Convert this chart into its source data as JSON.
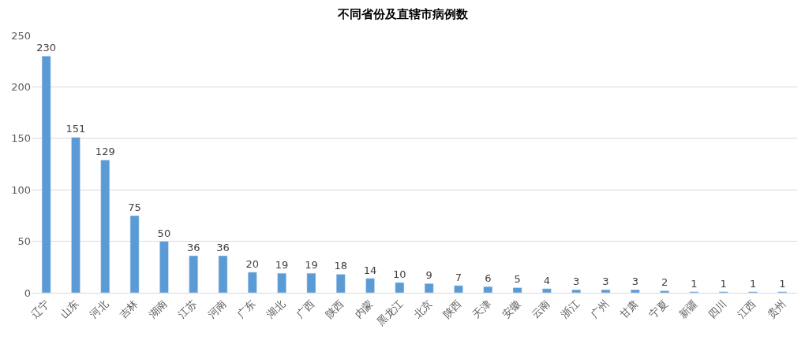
{
  "chart_data": {
    "type": "bar",
    "title": "不同省份及直辖市病例数",
    "categories": [
      "辽宁",
      "山东",
      "河北",
      "吉林",
      "湖南",
      "江苏",
      "河南",
      "广东",
      "湖北",
      "广西",
      "陕西",
      "内蒙",
      "黑龙江",
      "北京",
      "陕西",
      "天津",
      "安徽",
      "云南",
      "浙江",
      "广州",
      "甘肃",
      "宁夏",
      "新疆",
      "四川",
      "江西",
      "贵州"
    ],
    "values": [
      230,
      151,
      129,
      75,
      50,
      36,
      36,
      20,
      19,
      19,
      18,
      14,
      10,
      9,
      7,
      6,
      5,
      4,
      3,
      3,
      3,
      2,
      1,
      1,
      1,
      1
    ],
    "color": "#5b9bd5",
    "ylim": [
      0,
      250
    ],
    "yticks": [
      0,
      50,
      100,
      150,
      200,
      250
    ],
    "grid": "y",
    "data_labels": true,
    "legend": false
  }
}
